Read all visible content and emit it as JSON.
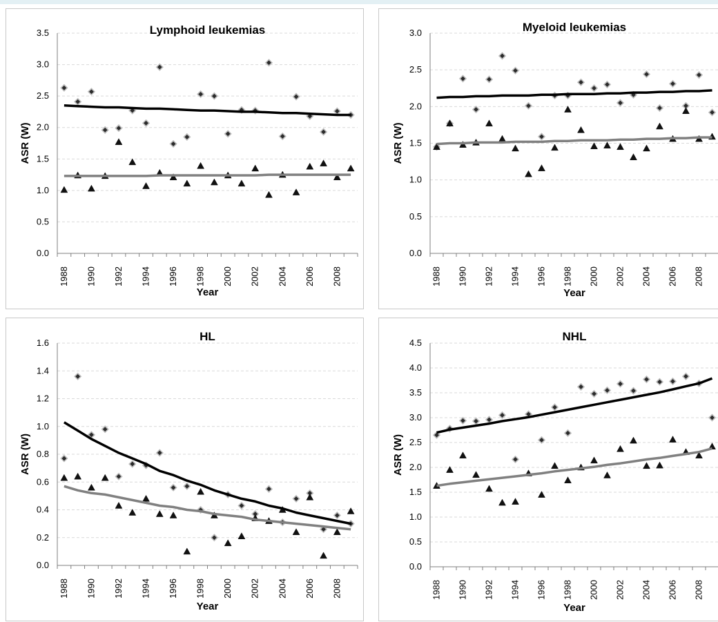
{
  "chart_data": [
    {
      "type": "scatter",
      "title": "Lymphoid leukemias",
      "xlabel": "Year",
      "ylabel": "ASR (W)",
      "ylim": [
        0,
        3.5
      ],
      "ystep": 0.5,
      "ydecimals": 1,
      "x": [
        1988,
        1989,
        1990,
        1991,
        1992,
        1993,
        1994,
        1995,
        1996,
        1997,
        1998,
        1999,
        2000,
        2001,
        2002,
        2003,
        2004,
        2005,
        2006,
        2007,
        2008,
        2009
      ],
      "xtick_labels": [
        "1988",
        "1990",
        "1992",
        "1994",
        "1996",
        "1998",
        "2000",
        "2002",
        "2004",
        "2006",
        "2008"
      ],
      "grid": true,
      "legend": "none",
      "series": [
        {
          "marker": "diamond",
          "values": [
            2.63,
            2.41,
            2.57,
            1.96,
            1.99,
            2.27,
            2.07,
            2.96,
            1.74,
            1.85,
            2.53,
            2.5,
            1.9,
            2.28,
            2.27,
            3.03,
            1.86,
            2.49,
            2.18,
            1.93,
            2.26,
            2.2
          ]
        },
        {
          "marker": "triangle",
          "values": [
            1.01,
            1.24,
            1.03,
            1.23,
            1.77,
            1.45,
            1.07,
            1.28,
            1.21,
            1.11,
            1.39,
            1.13,
            1.24,
            1.11,
            1.35,
            0.93,
            1.25,
            0.97,
            1.38,
            1.43,
            1.21,
            1.35
          ]
        },
        {
          "marker": "line",
          "color": "#000000",
          "values": [
            2.35,
            2.34,
            2.33,
            2.32,
            2.32,
            2.31,
            2.3,
            2.3,
            2.29,
            2.28,
            2.27,
            2.27,
            2.26,
            2.25,
            2.25,
            2.24,
            2.23,
            2.23,
            2.22,
            2.21,
            2.2,
            2.2
          ]
        },
        {
          "marker": "line",
          "color": "#808080",
          "values": [
            1.23,
            1.23,
            1.23,
            1.23,
            1.23,
            1.23,
            1.23,
            1.24,
            1.24,
            1.24,
            1.24,
            1.24,
            1.24,
            1.24,
            1.24,
            1.25,
            1.25,
            1.25,
            1.25,
            1.25,
            1.25,
            1.25
          ]
        }
      ]
    },
    {
      "type": "scatter",
      "title": "Myeloid leukemias",
      "xlabel": "Year",
      "ylabel": "ASR (W)",
      "ylim": [
        0,
        3.0
      ],
      "ystep": 0.5,
      "ydecimals": 1,
      "x": [
        1988,
        1989,
        1990,
        1991,
        1992,
        1993,
        1994,
        1995,
        1996,
        1997,
        1998,
        1999,
        2000,
        2001,
        2002,
        2003,
        2004,
        2005,
        2006,
        2007,
        2008,
        2009
      ],
      "xtick_labels": [
        "1988",
        "1990",
        "1992",
        "1994",
        "1996",
        "1998",
        "2000",
        "2002",
        "2004",
        "2006",
        "2008"
      ],
      "grid": true,
      "legend": "none",
      "series": [
        {
          "marker": "diamond",
          "values": [
            1.45,
            1.77,
            2.38,
            1.96,
            2.37,
            2.69,
            2.49,
            2.01,
            1.59,
            2.15,
            2.15,
            2.33,
            2.25,
            2.3,
            2.05,
            2.16,
            2.44,
            1.98,
            2.31,
            2.01,
            2.43,
            1.92
          ]
        },
        {
          "marker": "triangle",
          "values": [
            1.45,
            1.77,
            1.48,
            1.51,
            1.77,
            1.56,
            1.43,
            1.08,
            1.16,
            1.44,
            1.96,
            1.68,
            1.46,
            1.47,
            1.45,
            1.31,
            1.43,
            1.73,
            1.56,
            1.94,
            1.56,
            1.59
          ]
        },
        {
          "marker": "line",
          "color": "#000000",
          "values": [
            2.12,
            2.13,
            2.13,
            2.14,
            2.14,
            2.15,
            2.15,
            2.15,
            2.16,
            2.16,
            2.17,
            2.17,
            2.17,
            2.18,
            2.18,
            2.19,
            2.19,
            2.2,
            2.2,
            2.21,
            2.21,
            2.22
          ]
        },
        {
          "marker": "line",
          "color": "#808080",
          "values": [
            1.49,
            1.5,
            1.5,
            1.51,
            1.51,
            1.51,
            1.52,
            1.52,
            1.52,
            1.53,
            1.53,
            1.54,
            1.54,
            1.54,
            1.55,
            1.55,
            1.56,
            1.56,
            1.57,
            1.57,
            1.58,
            1.58
          ]
        }
      ]
    },
    {
      "type": "scatter",
      "title": "HL",
      "xlabel": "Year",
      "ylabel": "ASR (W)",
      "ylim": [
        0,
        1.6
      ],
      "ystep": 0.2,
      "ydecimals": 1,
      "x": [
        1988,
        1989,
        1990,
        1991,
        1992,
        1993,
        1994,
        1995,
        1996,
        1997,
        1998,
        1999,
        2000,
        2001,
        2002,
        2003,
        2004,
        2005,
        2006,
        2007,
        2008,
        2009
      ],
      "xtick_labels": [
        "1988",
        "1990",
        "1992",
        "1994",
        "1996",
        "1998",
        "2000",
        "2002",
        "2004",
        "2006",
        "2008"
      ],
      "grid": true,
      "legend": "none",
      "series": [
        {
          "marker": "diamond",
          "values": [
            0.77,
            1.36,
            0.94,
            0.98,
            0.64,
            0.73,
            0.72,
            0.81,
            0.56,
            0.57,
            0.4,
            0.2,
            0.51,
            0.43,
            0.37,
            0.55,
            0.31,
            0.48,
            0.52,
            0.26,
            0.36,
            0.3
          ]
        },
        {
          "marker": "triangle",
          "values": [
            0.63,
            0.64,
            0.56,
            0.63,
            0.43,
            0.38,
            0.48,
            0.37,
            0.36,
            0.1,
            0.53,
            0.36,
            0.16,
            0.21,
            0.34,
            0.32,
            0.4,
            0.24,
            0.49,
            0.07,
            0.24,
            0.39
          ]
        },
        {
          "marker": "line",
          "color": "#000000",
          "values": [
            1.03,
            0.97,
            0.91,
            0.86,
            0.81,
            0.77,
            0.73,
            0.68,
            0.65,
            0.61,
            0.58,
            0.54,
            0.51,
            0.48,
            0.46,
            0.43,
            0.41,
            0.38,
            0.36,
            0.34,
            0.32,
            0.3
          ]
        },
        {
          "marker": "line",
          "color": "#808080",
          "values": [
            0.57,
            0.54,
            0.52,
            0.51,
            0.49,
            0.47,
            0.45,
            0.43,
            0.42,
            0.4,
            0.39,
            0.37,
            0.36,
            0.35,
            0.33,
            0.32,
            0.31,
            0.3,
            0.29,
            0.28,
            0.27,
            0.26
          ]
        }
      ]
    },
    {
      "type": "scatter",
      "title": "NHL",
      "xlabel": "Year",
      "ylabel": "ASR (W)",
      "ylim": [
        0,
        4.5
      ],
      "ystep": 0.5,
      "ydecimals": 1,
      "x": [
        1988,
        1989,
        1990,
        1991,
        1992,
        1993,
        1994,
        1995,
        1996,
        1997,
        1998,
        1999,
        2000,
        2001,
        2002,
        2003,
        2004,
        2005,
        2006,
        2007,
        2008,
        2009
      ],
      "xtick_labels": [
        "1988",
        "1990",
        "1992",
        "1994",
        "1996",
        "1998",
        "2000",
        "2002",
        "2004",
        "2006",
        "2008"
      ],
      "grid": true,
      "legend": "none",
      "series": [
        {
          "marker": "diamond",
          "values": [
            2.65,
            2.78,
            2.94,
            2.93,
            2.96,
            3.05,
            2.16,
            3.07,
            2.55,
            3.21,
            2.69,
            3.62,
            3.48,
            3.55,
            3.68,
            3.54,
            3.77,
            3.72,
            3.73,
            3.83,
            3.69,
            3.0
          ]
        },
        {
          "marker": "triangle",
          "values": [
            1.63,
            1.95,
            2.24,
            1.85,
            1.57,
            1.29,
            1.31,
            1.88,
            1.45,
            2.03,
            1.74,
            2.0,
            2.14,
            1.84,
            2.37,
            2.54,
            2.03,
            2.04,
            2.56,
            2.31,
            2.24,
            2.42
          ]
        },
        {
          "marker": "line",
          "color": "#000000",
          "values": [
            2.7,
            2.76,
            2.8,
            2.84,
            2.88,
            2.93,
            2.97,
            3.01,
            3.06,
            3.11,
            3.16,
            3.21,
            3.26,
            3.31,
            3.36,
            3.41,
            3.46,
            3.51,
            3.57,
            3.63,
            3.69,
            3.79
          ]
        },
        {
          "marker": "line",
          "color": "#808080",
          "values": [
            1.63,
            1.67,
            1.7,
            1.73,
            1.76,
            1.79,
            1.82,
            1.85,
            1.88,
            1.92,
            1.95,
            1.98,
            2.01,
            2.05,
            2.08,
            2.12,
            2.16,
            2.19,
            2.23,
            2.27,
            2.31,
            2.38
          ]
        }
      ]
    }
  ]
}
